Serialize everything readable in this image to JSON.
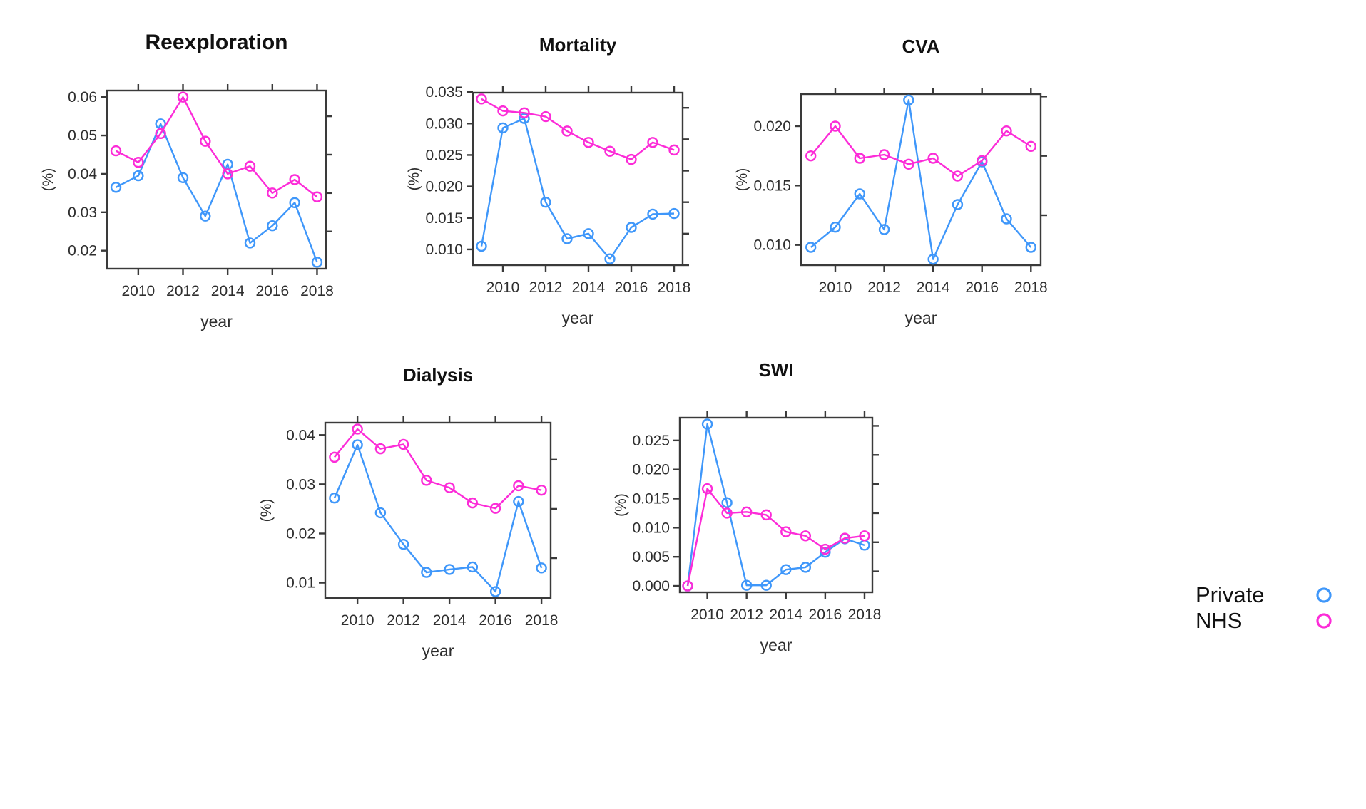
{
  "figure": {
    "xlabel": "year",
    "ylabel": "(%)",
    "colors": {
      "Private": "#3F97FA",
      "NHS": "#FC2CD8",
      "axis": "#3a3a3a",
      "text": "#2e2e2e",
      "title": "#111111"
    },
    "legend": {
      "position": "right",
      "entries": [
        {
          "label": "Private",
          "color": "#3F97FA",
          "marker": "open-circle"
        },
        {
          "label": "NHS",
          "color": "#FC2CD8",
          "marker": "open-circle"
        }
      ]
    }
  },
  "chart_data": [
    {
      "type": "line",
      "title": "Reexploration",
      "xlabel": "year",
      "ylabel": "(%)",
      "x": [
        2009,
        2010,
        2011,
        2012,
        2013,
        2014,
        2015,
        2016,
        2017,
        2018
      ],
      "xticks": [
        2010,
        2012,
        2014,
        2016,
        2018
      ],
      "xtick_labels": [
        "2010",
        "2012",
        "2014",
        "2016",
        "2018"
      ],
      "yticks": [
        0.02,
        0.03,
        0.04,
        0.05,
        0.06
      ],
      "ytick_labels": [
        "0.02",
        "0.03",
        "0.04",
        "0.05",
        "0.06"
      ],
      "xlim": [
        2008.6,
        2018.4
      ],
      "ylim": [
        0.0153,
        0.0617
      ],
      "grid": false,
      "series": [
        {
          "name": "Private",
          "values": [
            0.0365,
            0.0395,
            0.053,
            0.039,
            0.029,
            0.0425,
            0.022,
            0.0265,
            0.0325,
            0.017
          ]
        },
        {
          "name": "NHS",
          "values": [
            0.046,
            0.043,
            0.0505,
            0.06,
            0.0485,
            0.04,
            0.042,
            0.035,
            0.0385,
            0.034
          ]
        }
      ]
    },
    {
      "type": "line",
      "title": "Mortality",
      "xlabel": "year",
      "ylabel": "(%)",
      "x": [
        2009,
        2010,
        2011,
        2012,
        2013,
        2014,
        2015,
        2016,
        2017,
        2018
      ],
      "xticks": [
        2010,
        2012,
        2014,
        2016,
        2018
      ],
      "xtick_labels": [
        "2010",
        "2012",
        "2014",
        "2016",
        "2018"
      ],
      "yticks": [
        0.01,
        0.015,
        0.02,
        0.025,
        0.03,
        0.035
      ],
      "ytick_labels": [
        "0.010",
        "0.015",
        "0.020",
        "0.025",
        "0.030",
        "0.035"
      ],
      "xlim": [
        2008.6,
        2018.4
      ],
      "ylim": [
        0.0075,
        0.0349
      ],
      "grid": false,
      "series": [
        {
          "name": "Private",
          "values": [
            0.0105,
            0.0293,
            0.0308,
            0.0175,
            0.0117,
            0.0125,
            0.0085,
            0.0135,
            0.0156,
            0.0157
          ]
        },
        {
          "name": "NHS",
          "values": [
            0.0339,
            0.032,
            0.0317,
            0.0311,
            0.0288,
            0.027,
            0.0256,
            0.0243,
            0.027,
            0.0258
          ]
        }
      ]
    },
    {
      "type": "line",
      "title": "CVA",
      "xlabel": "year",
      "ylabel": "(%)",
      "x": [
        2009,
        2010,
        2011,
        2012,
        2013,
        2014,
        2015,
        2016,
        2017,
        2018
      ],
      "xticks": [
        2010,
        2012,
        2014,
        2016,
        2018
      ],
      "xtick_labels": [
        "2010",
        "2012",
        "2014",
        "2016",
        "2018"
      ],
      "yticks": [
        0.01,
        0.015,
        0.02
      ],
      "ytick_labels": [
        "0.010",
        "0.015",
        "0.020"
      ],
      "xlim": [
        2008.6,
        2018.4
      ],
      "ylim": [
        0.0083,
        0.0227
      ],
      "grid": false,
      "series": [
        {
          "name": "Private",
          "values": [
            0.0098,
            0.0115,
            0.0143,
            0.0113,
            0.0222,
            0.0088,
            0.0134,
            0.017,
            0.0122,
            0.0098
          ]
        },
        {
          "name": "NHS",
          "values": [
            0.0175,
            0.02,
            0.0173,
            0.0176,
            0.0168,
            0.0173,
            0.0158,
            0.0171,
            0.0196,
            0.0183
          ]
        }
      ]
    },
    {
      "type": "line",
      "title": "Dialysis",
      "xlabel": "year",
      "ylabel": "(%)",
      "x": [
        2009,
        2010,
        2011,
        2012,
        2013,
        2014,
        2015,
        2016,
        2017,
        2018
      ],
      "xticks": [
        2010,
        2012,
        2014,
        2016,
        2018
      ],
      "xtick_labels": [
        "2010",
        "2012",
        "2014",
        "2016",
        "2018"
      ],
      "yticks": [
        0.01,
        0.02,
        0.03,
        0.04
      ],
      "ytick_labels": [
        "0.01",
        "0.02",
        "0.03",
        "0.04"
      ],
      "xlim": [
        2008.6,
        2018.4
      ],
      "ylim": [
        0.0069,
        0.0425
      ],
      "grid": false,
      "series": [
        {
          "name": "Private",
          "values": [
            0.0272,
            0.038,
            0.0242,
            0.0178,
            0.0121,
            0.0127,
            0.0132,
            0.0082,
            0.0265,
            0.013
          ]
        },
        {
          "name": "NHS",
          "values": [
            0.0355,
            0.0412,
            0.0372,
            0.0381,
            0.0308,
            0.0293,
            0.0262,
            0.0251,
            0.0297,
            0.0288
          ]
        }
      ]
    },
    {
      "type": "line",
      "title": "SWI",
      "xlabel": "year",
      "ylabel": "(%)",
      "x": [
        2009,
        2010,
        2011,
        2012,
        2013,
        2014,
        2015,
        2016,
        2017,
        2018
      ],
      "xticks": [
        2010,
        2012,
        2014,
        2016,
        2018
      ],
      "xtick_labels": [
        "2010",
        "2012",
        "2014",
        "2016",
        "2018"
      ],
      "yticks": [
        0.0,
        0.005,
        0.01,
        0.015,
        0.02,
        0.025
      ],
      "ytick_labels": [
        "0.000",
        "0.005",
        "0.010",
        "0.015",
        "0.020",
        "0.025"
      ],
      "xlim": [
        2008.6,
        2018.4
      ],
      "ylim": [
        -0.0011,
        0.0289
      ],
      "grid": false,
      "series": [
        {
          "name": "Private",
          "values": [
            0.0,
            0.0278,
            0.0143,
            0.0001,
            0.0001,
            0.0028,
            0.0032,
            0.0058,
            0.0081,
            0.007
          ]
        },
        {
          "name": "NHS",
          "values": [
            0.0,
            0.0167,
            0.0125,
            0.0127,
            0.0122,
            0.0093,
            0.0086,
            0.0063,
            0.0082,
            0.0086
          ]
        }
      ]
    }
  ]
}
